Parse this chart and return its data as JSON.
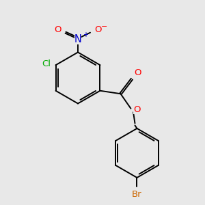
{
  "background_color": "#e8e8e8",
  "figsize": [
    3.0,
    3.0
  ],
  "dpi": 100,
  "atom_colors": {
    "O": "#ff0000",
    "N": "#0000cc",
    "Cl": "#00aa00",
    "Br": "#cc6600"
  },
  "font_size": 9.5,
  "bond_lw": 1.4,
  "xlim": [
    0,
    10
  ],
  "ylim": [
    0,
    10
  ]
}
